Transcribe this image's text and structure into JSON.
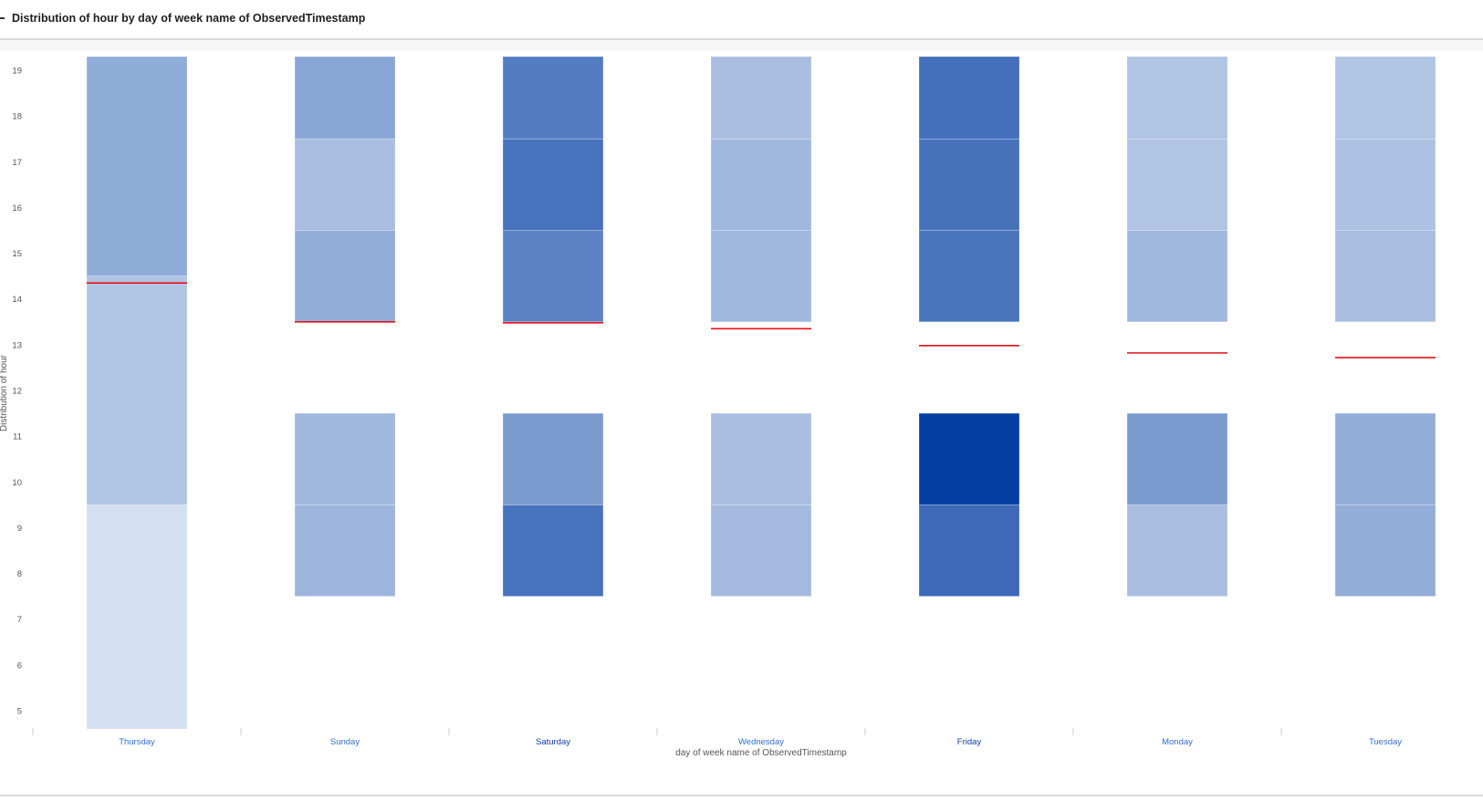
{
  "header": {
    "title": "Distribution of hour by day of week name of ObservedTimestamp"
  },
  "chart_data": {
    "type": "heatmap",
    "title": "Distribution of hour by day of week name of ObservedTimestamp",
    "xlabel": "day of week name of ObservedTimestamp",
    "ylabel": "Distribution of hour",
    "categories": [
      "Thursday",
      "Sunday",
      "Saturday",
      "Wednesday",
      "Friday",
      "Monday",
      "Tuesday"
    ],
    "category_colors": [
      "#2f6fd1",
      "#2f6fd1",
      "#0b3fa6",
      "#2f6fd1",
      "#0b3fa6",
      "#2f6fd1",
      "#2f6fd1"
    ],
    "yticks": [
      5,
      6,
      7,
      8,
      9,
      10,
      11,
      12,
      13,
      14,
      15,
      16,
      17,
      18,
      19
    ],
    "ylim": [
      4.6,
      19.3
    ],
    "bin_edges": [
      4.6,
      7.5,
      9.5,
      11.5,
      13.5,
      15.5,
      17.5,
      19.3
    ],
    "grid": false,
    "legend": "none",
    "color_range": [
      "#d4e0f1",
      "#043ea3"
    ],
    "series": [
      {
        "category": "Thursday",
        "mean": 14.35,
        "bins": [
          {
            "from": 4.6,
            "to": 9.5,
            "color": "#d4e0f1"
          },
          {
            "from": 9.5,
            "to": 14.5,
            "color": "#b0c4e3"
          },
          {
            "from": 14.5,
            "to": 19.3,
            "color": "#90acd9"
          }
        ]
      },
      {
        "category": "Sunday",
        "mean": 13.5,
        "bins": [
          {
            "from": 7.5,
            "to": 9.5,
            "color": "#9db5dd"
          },
          {
            "from": 9.5,
            "to": 11.5,
            "color": "#a0b7de"
          },
          {
            "from": 13.5,
            "to": 15.5,
            "color": "#93add9"
          },
          {
            "from": 15.5,
            "to": 17.5,
            "color": "#a8bde0"
          },
          {
            "from": 17.5,
            "to": 19.3,
            "color": "#8aa6d6"
          }
        ]
      },
      {
        "category": "Saturday",
        "mean": 13.48,
        "bins": [
          {
            "from": 7.5,
            "to": 9.5,
            "color": "#4772bd"
          },
          {
            "from": 9.5,
            "to": 11.5,
            "color": "#7b9bcf"
          },
          {
            "from": 13.5,
            "to": 15.5,
            "color": "#5d82c5"
          },
          {
            "from": 15.5,
            "to": 17.5,
            "color": "#4772bd"
          },
          {
            "from": 17.5,
            "to": 19.3,
            "color": "#547cc2"
          }
        ]
      },
      {
        "category": "Wednesday",
        "mean": 13.35,
        "bins": [
          {
            "from": 7.5,
            "to": 9.5,
            "color": "#a4badf"
          },
          {
            "from": 9.5,
            "to": 11.5,
            "color": "#a9bde0"
          },
          {
            "from": 13.5,
            "to": 15.5,
            "color": "#a0b7de"
          },
          {
            "from": 15.5,
            "to": 17.5,
            "color": "#a0b7de"
          },
          {
            "from": 17.5,
            "to": 19.3,
            "color": "#a9bde0"
          }
        ]
      },
      {
        "category": "Friday",
        "mean": 12.98,
        "bins": [
          {
            "from": 7.5,
            "to": 9.5,
            "color": "#3d69b8"
          },
          {
            "from": 9.5,
            "to": 11.5,
            "color": "#043ea3"
          },
          {
            "from": 13.5,
            "to": 15.5,
            "color": "#4a76be"
          },
          {
            "from": 15.5,
            "to": 17.5,
            "color": "#4672bc"
          },
          {
            "from": 17.5,
            "to": 19.3,
            "color": "#436fbb"
          }
        ]
      },
      {
        "category": "Monday",
        "mean": 12.82,
        "bins": [
          {
            "from": 7.5,
            "to": 9.5,
            "color": "#a9bde0"
          },
          {
            "from": 9.5,
            "to": 11.5,
            "color": "#7b9bcf"
          },
          {
            "from": 13.5,
            "to": 15.5,
            "color": "#a0b7de"
          },
          {
            "from": 15.5,
            "to": 17.5,
            "color": "#b0c4e3"
          },
          {
            "from": 17.5,
            "to": 19.3,
            "color": "#b0c4e3"
          }
        ]
      },
      {
        "category": "Tuesday",
        "mean": 12.72,
        "bins": [
          {
            "from": 7.5,
            "to": 9.5,
            "color": "#93add9"
          },
          {
            "from": 9.5,
            "to": 11.5,
            "color": "#93add9"
          },
          {
            "from": 13.5,
            "to": 15.5,
            "color": "#a9bde0"
          },
          {
            "from": 15.5,
            "to": 17.5,
            "color": "#adc1e2"
          },
          {
            "from": 17.5,
            "to": 19.3,
            "color": "#b0c4e3"
          }
        ]
      }
    ],
    "mean_line_color": "#e8101a"
  }
}
